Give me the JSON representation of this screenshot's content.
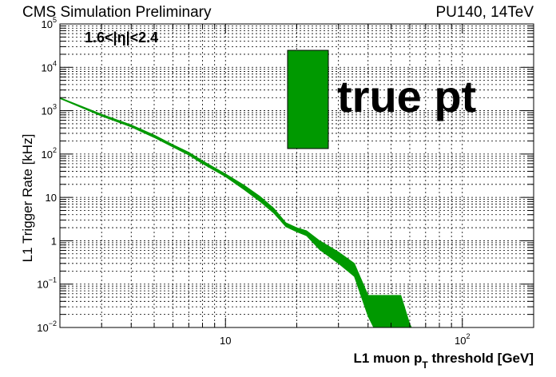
{
  "header": {
    "left_text": "CMS Simulation Preliminary",
    "right_text": "PU140, 14TeV"
  },
  "chart_data": {
    "type": "area",
    "title": "",
    "xlabel": "L1 muon p_T threshold [GeV]",
    "ylabel": "L1 Trigger Rate [kHz]",
    "x_scale": "log",
    "y_scale": "log",
    "xlim": [
      2,
      200
    ],
    "ylim": [
      0.01,
      100000
    ],
    "grid": true,
    "x_ticks": [
      {
        "value": 10,
        "label": "10"
      },
      {
        "value": 100,
        "label": "10",
        "sup": "2"
      }
    ],
    "y_ticks": [
      {
        "value": 0.01,
        "label": "10",
        "sup": "−2"
      },
      {
        "value": 0.1,
        "label": "10",
        "sup": "−1"
      },
      {
        "value": 1,
        "label": "1",
        "sup": ""
      },
      {
        "value": 10,
        "label": "10",
        "sup": ""
      },
      {
        "value": 100,
        "label": "10",
        "sup": "2"
      },
      {
        "value": 1000,
        "label": "10",
        "sup": "3"
      },
      {
        "value": 10000,
        "label": "10",
        "sup": "4"
      },
      {
        "value": 100000,
        "label": "10",
        "sup": "5"
      }
    ],
    "annotation": "1.6<|η|<2.4",
    "legend": {
      "label": "true pt",
      "color": "#009900",
      "position": "top-center"
    },
    "series": [
      {
        "name": "true pt",
        "color": "#009900",
        "x": [
          2.0,
          3.0,
          4.0,
          5.0,
          6.0,
          7.0,
          8.0,
          10.0,
          12.0,
          14.0,
          16.0,
          18.0,
          20.0,
          22.0,
          25.0,
          30.0,
          35.0,
          40.0,
          45.0,
          50.0,
          55.0,
          60.0,
          65.0,
          70.0
        ],
        "y_low": [
          1900,
          750,
          420,
          240,
          145,
          95,
          60,
          30,
          15,
          8.0,
          4.3,
          2.1,
          1.6,
          1.3,
          0.62,
          0.3,
          0.15,
          0.018,
          0.004,
          0.004,
          0.004,
          0.004,
          0.004,
          0.004
        ],
        "y_high": [
          2000,
          830,
          470,
          275,
          165,
          110,
          70,
          35,
          19,
          10.5,
          5.6,
          2.6,
          2.0,
          1.7,
          1.0,
          0.55,
          0.3,
          0.055,
          0.055,
          0.055,
          0.055,
          0.012,
          0.004,
          0.004
        ]
      }
    ]
  }
}
